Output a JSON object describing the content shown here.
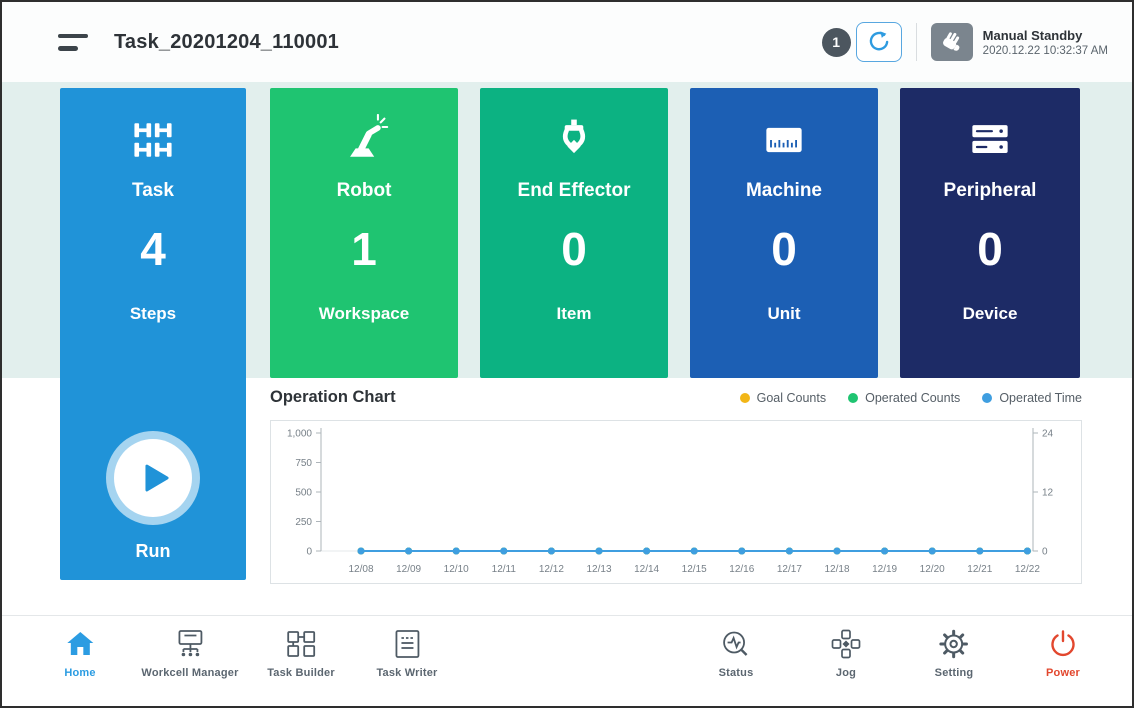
{
  "header": {
    "title": "Task_20201204_110001",
    "badge": "1",
    "mode": "Manual Standby",
    "timestamp": "2020.12.22 10:32:37 AM"
  },
  "cards": {
    "task": {
      "title": "Task",
      "value": "4",
      "unit": "Steps",
      "run_label": "Run",
      "color": "#2093d8"
    },
    "robot": {
      "title": "Robot",
      "value": "1",
      "unit": "Workspace",
      "color": "#1fc471"
    },
    "end_effector": {
      "title": "End Effector",
      "value": "0",
      "unit": "Item",
      "color": "#0cb282"
    },
    "machine": {
      "title": "Machine",
      "value": "0",
      "unit": "Unit",
      "color": "#1c5fb4"
    },
    "peripheral": {
      "title": "Peripheral",
      "value": "0",
      "unit": "Device",
      "color": "#1d2b66"
    }
  },
  "chart_data": {
    "type": "line",
    "title": "Operation Chart",
    "categories": [
      "12/08",
      "12/09",
      "12/10",
      "12/11",
      "12/12",
      "12/13",
      "12/14",
      "12/15",
      "12/16",
      "12/17",
      "12/18",
      "12/19",
      "12/20",
      "12/21",
      "12/22"
    ],
    "series": [
      {
        "name": "Goal Counts",
        "color": "#f2b617",
        "axis": "left",
        "values": [
          0,
          0,
          0,
          0,
          0,
          0,
          0,
          0,
          0,
          0,
          0,
          0,
          0,
          0,
          0
        ]
      },
      {
        "name": "Operated Counts",
        "color": "#1fc471",
        "axis": "left",
        "values": [
          0,
          0,
          0,
          0,
          0,
          0,
          0,
          0,
          0,
          0,
          0,
          0,
          0,
          0,
          0
        ]
      },
      {
        "name": "Operated Time",
        "color": "#3f9ee0",
        "axis": "right",
        "values": [
          0,
          0,
          0,
          0,
          0,
          0,
          0,
          0,
          0,
          0,
          0,
          0,
          0,
          0,
          0
        ]
      }
    ],
    "y_left": {
      "max": 1000,
      "ticks": [
        "0",
        "250",
        "500",
        "750",
        "1,000"
      ],
      "values": [
        0,
        250,
        500,
        750,
        1000
      ]
    },
    "y_right": {
      "max": 24,
      "ticks": [
        "0",
        "12",
        "24"
      ],
      "values": [
        0,
        12,
        24
      ]
    },
    "grid": false,
    "legend_position": "top-right"
  },
  "nav": {
    "items": [
      {
        "label": "Home"
      },
      {
        "label": "Workcell Manager"
      },
      {
        "label": "Task Builder"
      },
      {
        "label": "Task Writer"
      },
      {
        "label": "Status"
      },
      {
        "label": "Jog"
      },
      {
        "label": "Setting"
      },
      {
        "label": "Power"
      }
    ]
  }
}
